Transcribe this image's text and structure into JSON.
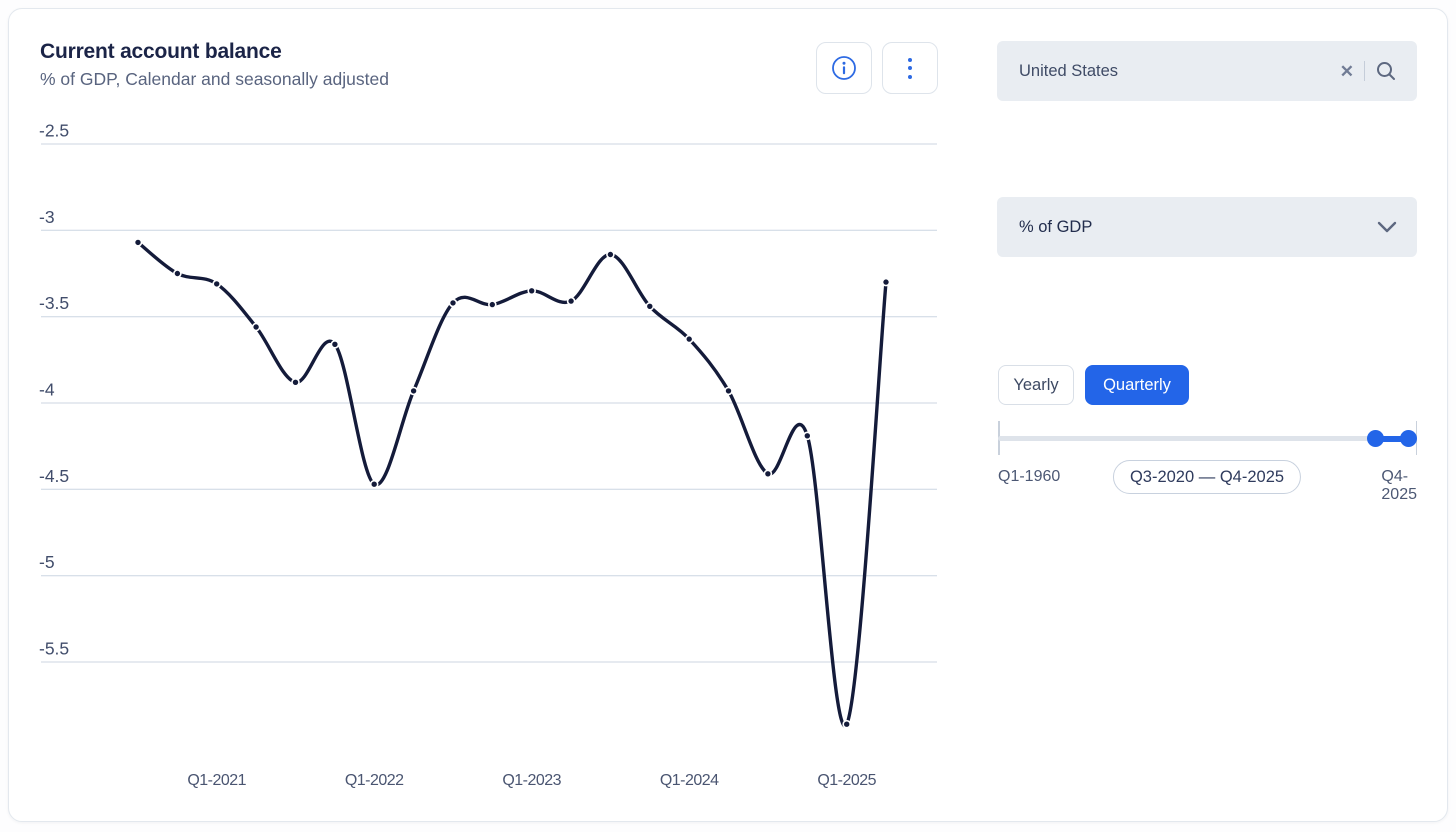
{
  "header": {
    "title": "Current account balance",
    "subtitle": "% of GDP, Calendar and seasonally adjusted"
  },
  "toolbar": {
    "info_icon": "info-circle",
    "menu_icon": "kebab-vertical-dots"
  },
  "panel": {
    "search": {
      "value": "United States",
      "clear_icon": "✕",
      "search_icon": "magnifier"
    },
    "measure_dropdown": {
      "value": "% of GDP",
      "chevron_icon": "chevron-down"
    },
    "frequency_toggle": {
      "yearly_label": "Yearly",
      "quarterly_label": "Quarterly",
      "selected": "Quarterly"
    },
    "time_slider": {
      "min_label": "Q1-1960",
      "max_label": "Q4-2025",
      "range_label": "Q3-2020 — Q4-2025"
    }
  },
  "colors": {
    "accent_blue": "#2365e8",
    "line": "#141b3a",
    "gridline": "#ccd5e2",
    "field_bg": "#e9edf2"
  },
  "chart_data": {
    "type": "line",
    "title": "Current account balance",
    "subtitle": "% of GDP, Calendar and seasonally adjusted",
    "x": [
      "Q3-2020",
      "Q4-2020",
      "Q1-2021",
      "Q2-2021",
      "Q3-2021",
      "Q4-2021",
      "Q1-2022",
      "Q2-2022",
      "Q3-2022",
      "Q4-2022",
      "Q1-2023",
      "Q2-2023",
      "Q3-2023",
      "Q4-2023",
      "Q1-2024",
      "Q2-2024",
      "Q3-2024",
      "Q4-2024",
      "Q1-2025",
      "Q2-2025"
    ],
    "values": [
      -3.07,
      -3.25,
      -3.31,
      -3.56,
      -3.88,
      -3.66,
      -4.47,
      -3.93,
      -3.42,
      -3.43,
      -3.35,
      -3.41,
      -3.14,
      -3.44,
      -3.63,
      -3.93,
      -4.41,
      -4.19,
      -5.86,
      -3.3
    ],
    "x_tick_labels": [
      "Q1-2021",
      "Q1-2022",
      "Q1-2023",
      "Q1-2024",
      "Q1-2025"
    ],
    "y_ticks": [
      -2.5,
      -3,
      -3.5,
      -4,
      -4.5,
      -5,
      -5.5
    ],
    "ylim": [
      -6.0,
      -2.5
    ],
    "xlabel": "",
    "ylabel": "% of GDP",
    "grid": "horizontal",
    "legend": "none",
    "line_color": "#141b3a",
    "markers": true,
    "smooth": true
  }
}
